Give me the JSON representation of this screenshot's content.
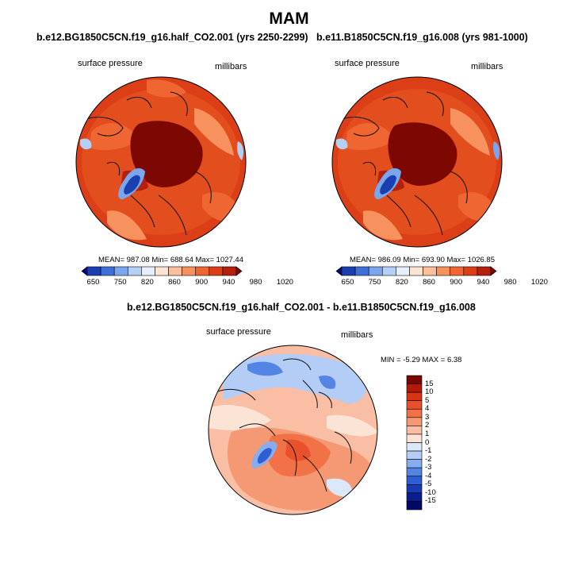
{
  "figure": {
    "title": "MAM"
  },
  "panels": [
    {
      "title": "b.e12.BG1850C5CN.f19_g16.half_CO2.001 (yrs 2250-2299)",
      "left_label": "surface pressure",
      "right_label": "millibars",
      "stats": "MEAN= 987.08  Min= 688.64  Max= 1027.44",
      "colorbar_labels": [
        "650",
        "750",
        "820",
        "860",
        "900",
        "940",
        "980",
        "1020"
      ]
    },
    {
      "title": "b.e11.B1850C5CN.f19_g16.008 (yrs 981-1000)",
      "left_label": "surface pressure",
      "right_label": "millibars",
      "stats": "MEAN= 986.09  Min= 693.90  Max= 1026.85",
      "colorbar_labels": [
        "650",
        "750",
        "820",
        "860",
        "900",
        "940",
        "980",
        "1020"
      ]
    }
  ],
  "difference_panel": {
    "title": "b.e12.BG1850C5CN.f19_g16.half_CO2.001 - b.e11.B1850C5CN.f19_g16.008",
    "left_label": "surface pressure",
    "right_label": "millibars",
    "stats": "MIN =  -5.29 MAX =   6.38",
    "colorbar_labels": [
      "15",
      "10",
      "5",
      "4",
      "3",
      "2",
      "1",
      "0",
      "-1",
      "-2",
      "-3",
      "-4",
      "-5",
      "-10",
      "-15"
    ]
  },
  "colors": {
    "abs_colorbar": [
      "#00007a",
      "#1a3fb0",
      "#3f6fd8",
      "#7aa6ee",
      "#b5d0f7",
      "#e7eefc",
      "#fde4d2",
      "#fbbf9c",
      "#f7925f",
      "#ef6632",
      "#dc3f17",
      "#b4200c",
      "#7d0802"
    ],
    "diff_colorbar": [
      "#7a0502",
      "#b3190b",
      "#d7350f",
      "#e8512b",
      "#f07246",
      "#f59874",
      "#f9bea3",
      "#fbe3d6",
      "#dbe7fb",
      "#b3cdf6",
      "#86adf0",
      "#5585e4",
      "#2e5ed3",
      "#173bb3",
      "#0a1d8c",
      "#000a66"
    ],
    "land": "#111111"
  }
}
